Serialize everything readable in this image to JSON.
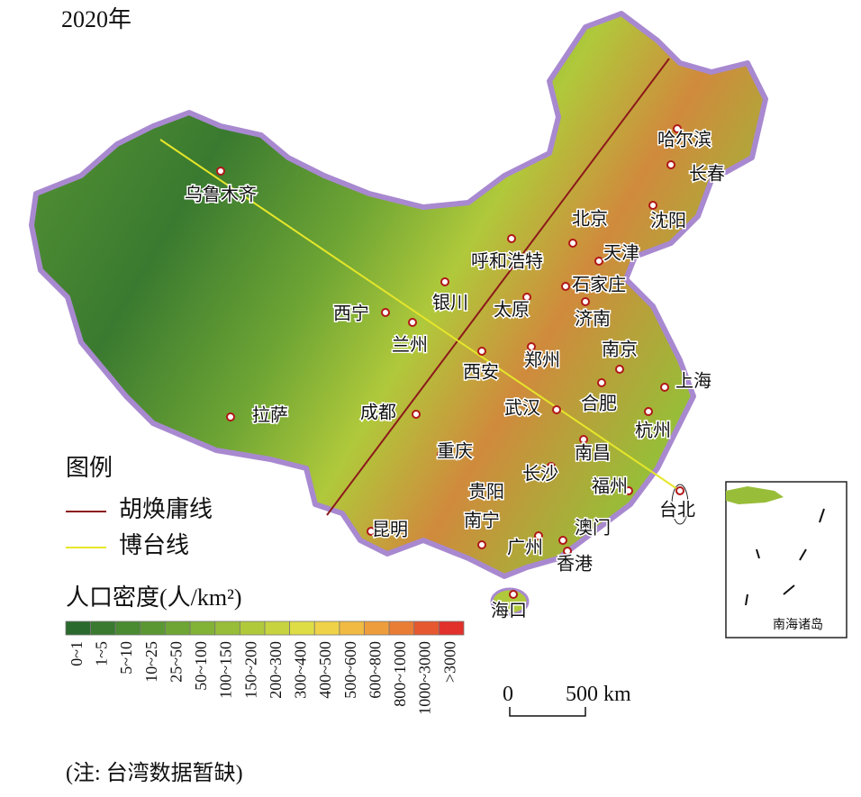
{
  "title": "2020年",
  "cities": [
    "乌鲁木齐",
    "哈尔滨",
    "长春",
    "沈阳",
    "北京",
    "天津",
    "呼和浩特",
    "石家庄",
    "银川",
    "太原",
    "济南",
    "西宁",
    "兰州",
    "南京",
    "郑州",
    "西安",
    "上海",
    "成都",
    "武汉",
    "合肥",
    "拉萨",
    "杭州",
    "重庆",
    "南昌",
    "长沙",
    "福州",
    "台北",
    "贵阳",
    "昆明",
    "南宁",
    "澳门",
    "广州",
    "香港",
    "海口"
  ],
  "legend": {
    "title": "图例",
    "lines": [
      {
        "label": "胡焕庸线",
        "color": "#8b1a1a"
      },
      {
        "label": "博台线",
        "color": "#e6e62a"
      }
    ],
    "density_title": "人口密度(人/km²)",
    "bins": [
      {
        "label": "0~1",
        "color": "#2b6a2e"
      },
      {
        "label": "1~5",
        "color": "#3a7a30"
      },
      {
        "label": "5~10",
        "color": "#4a8a31"
      },
      {
        "label": "10~25",
        "color": "#5b9833"
      },
      {
        "label": "25~50",
        "color": "#6ea534"
      },
      {
        "label": "50~100",
        "color": "#82b236"
      },
      {
        "label": "100~150",
        "color": "#98bd38"
      },
      {
        "label": "150~200",
        "color": "#b0c93b"
      },
      {
        "label": "200~300",
        "color": "#c8d43f"
      },
      {
        "label": "300~400",
        "color": "#dfdd45"
      },
      {
        "label": "400~500",
        "color": "#efd248"
      },
      {
        "label": "500~600",
        "color": "#f0ba43"
      },
      {
        "label": "600~800",
        "color": "#ee9d3c"
      },
      {
        "label": "800~1000",
        "color": "#ea7d35"
      },
      {
        "label": "1000~3000",
        "color": "#e6582f"
      },
      {
        "label": ">3000",
        "color": "#e2302b"
      }
    ]
  },
  "scale": {
    "start": "0",
    "end": "500 km"
  },
  "inset_label": "南海诸岛",
  "note": "(注: 台湾数据暂缺)"
}
